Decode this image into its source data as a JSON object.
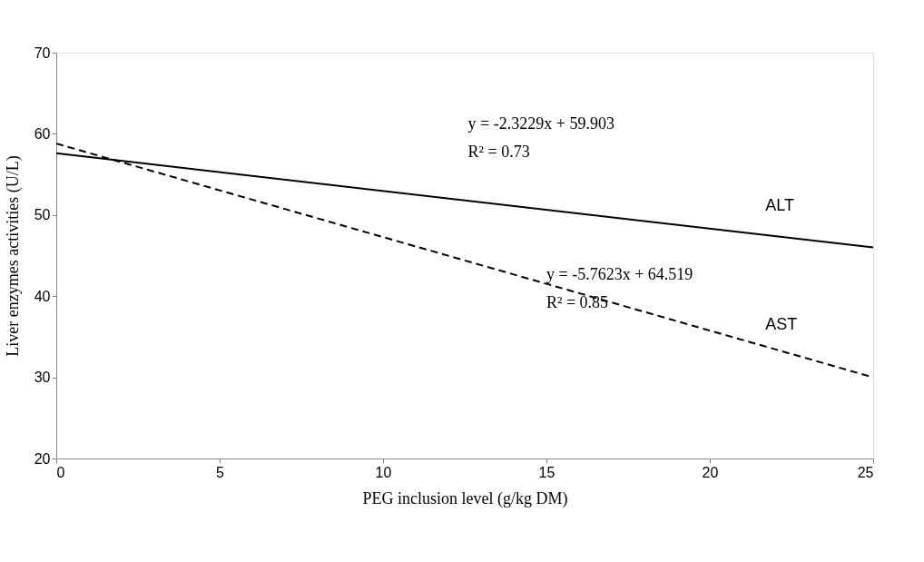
{
  "chart_data": {
    "type": "line",
    "xlabel": "PEG inclusion level (g/kg DM)",
    "ylabel": "Liver enzymes activities (U/L)",
    "x": [
      0,
      25
    ],
    "series": [
      {
        "name": "ALT",
        "color": "#000000",
        "values": [
          57.6,
          46.0
        ],
        "line_style": "solid"
      },
      {
        "name": "AST",
        "color": "#000000",
        "values": [
          58.8,
          30.0
        ],
        "line_style": "dashed"
      }
    ],
    "annotations": [
      "y = -2.3229x + 59.903",
      "R² = 0.73",
      "y = -5.7623x + 64.519",
      "R² = 0.85"
    ],
    "xlim": [
      0,
      25
    ],
    "xticks": [
      0,
      5,
      10,
      15,
      20,
      25
    ],
    "ylim": [
      20,
      70
    ],
    "yticks": [
      20,
      30,
      40,
      50,
      60,
      70
    ],
    "grid": false,
    "marker": "none"
  }
}
